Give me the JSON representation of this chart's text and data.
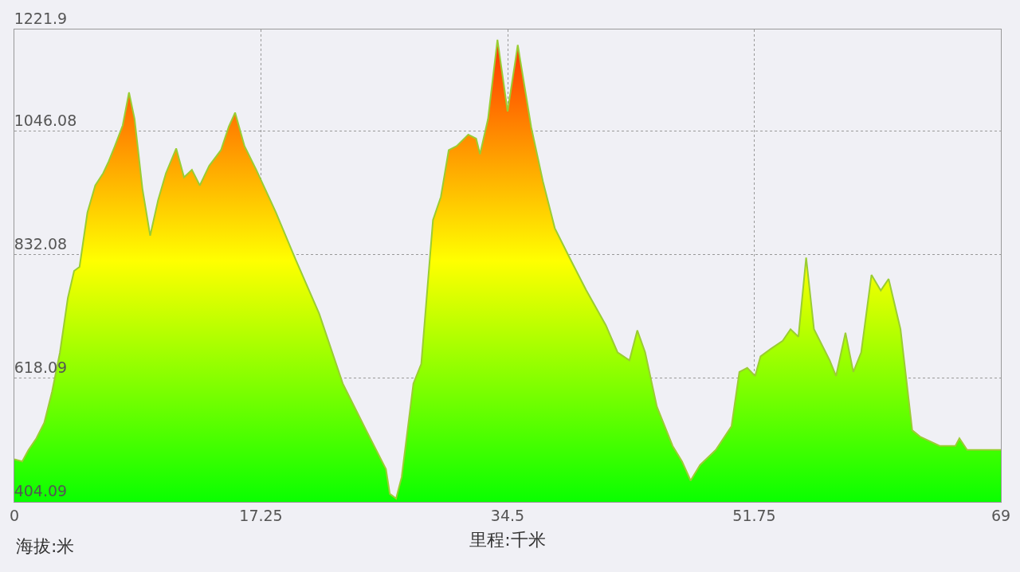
{
  "chart_data": {
    "type": "area",
    "xlabel": "里程:千米",
    "annotations": [
      "海拔:米"
    ],
    "x": [
      0,
      0.55,
      0.99,
      1.54,
      2.09,
      2.64,
      3.19,
      3.74,
      4.18,
      4.56,
      5.11,
      5.66,
      6.21,
      6.59,
      7.03,
      7.58,
      8.02,
      8.41,
      8.96,
      9.5,
      10.05,
      10.6,
      11.32,
      11.87,
      12.42,
      12.97,
      13.63,
      14.45,
      15.0,
      15.44,
      16.1,
      16.92,
      18.3,
      19.67,
      21.32,
      22.97,
      24.61,
      25.99,
      26.26,
      26.7,
      27.09,
      27.91,
      28.46,
      29.28,
      29.83,
      30.38,
      30.93,
      31.75,
      32.3,
      32.57,
      33.13,
      33.79,
      34.5,
      35.21,
      36.15,
      36.97,
      37.8,
      38.89,
      39.99,
      41.37,
      42.19,
      43.02,
      43.57,
      44.12,
      44.94,
      46.04,
      46.7,
      47.3,
      47.96,
      49.06,
      50.16,
      50.71,
      51.26,
      51.81,
      52.19,
      52.91,
      53.74,
      54.29,
      54.84,
      55.38,
      55.93,
      57.03,
      57.47,
      58.13,
      58.68,
      59.23,
      59.95,
      60.6,
      61.15,
      61.98,
      62.8,
      63.35,
      64.72,
      65.82,
      66.1,
      66.64,
      69
    ],
    "series": [
      {
        "color": "#9acd32",
        "values": [
          478,
          474,
          494,
          514,
          541,
          595,
          663,
          757,
          804,
          811,
          905,
          952,
          973,
          993,
          1020,
          1056,
          1113,
          1067,
          946,
          865,
          926,
          973,
          1016,
          966,
          979,
          952,
          986,
          1013,
          1054,
          1078,
          1020,
          979,
          905,
          824,
          730,
          609,
          528,
          461,
          418,
          410,
          447,
          609,
          643,
          892,
          932,
          1013,
          1020,
          1040,
          1033,
          1006,
          1067,
          1204,
          1080,
          1195,
          1053,
          959,
          878,
          824,
          771,
          710,
          663,
          649,
          701,
          663,
          569,
          501,
          474,
          441,
          468,
          494,
          535,
          629,
          636,
          622,
          656,
          669,
          683,
          703,
          690,
          827,
          703,
          649,
          622,
          697,
          629,
          663,
          797,
          770,
          790,
          703,
          528,
          517,
          501,
          501,
          514,
          494,
          494
        ]
      }
    ],
    "xlim": [
      0,
      69
    ],
    "xticks": [
      0,
      17.25,
      34.5,
      51.75,
      69
    ],
    "ylim": [
      404.09,
      1221.9
    ],
    "yticks": [
      404.09,
      618.09,
      832.08,
      1046.08,
      1221.9
    ],
    "grid": true,
    "marker": "none"
  }
}
